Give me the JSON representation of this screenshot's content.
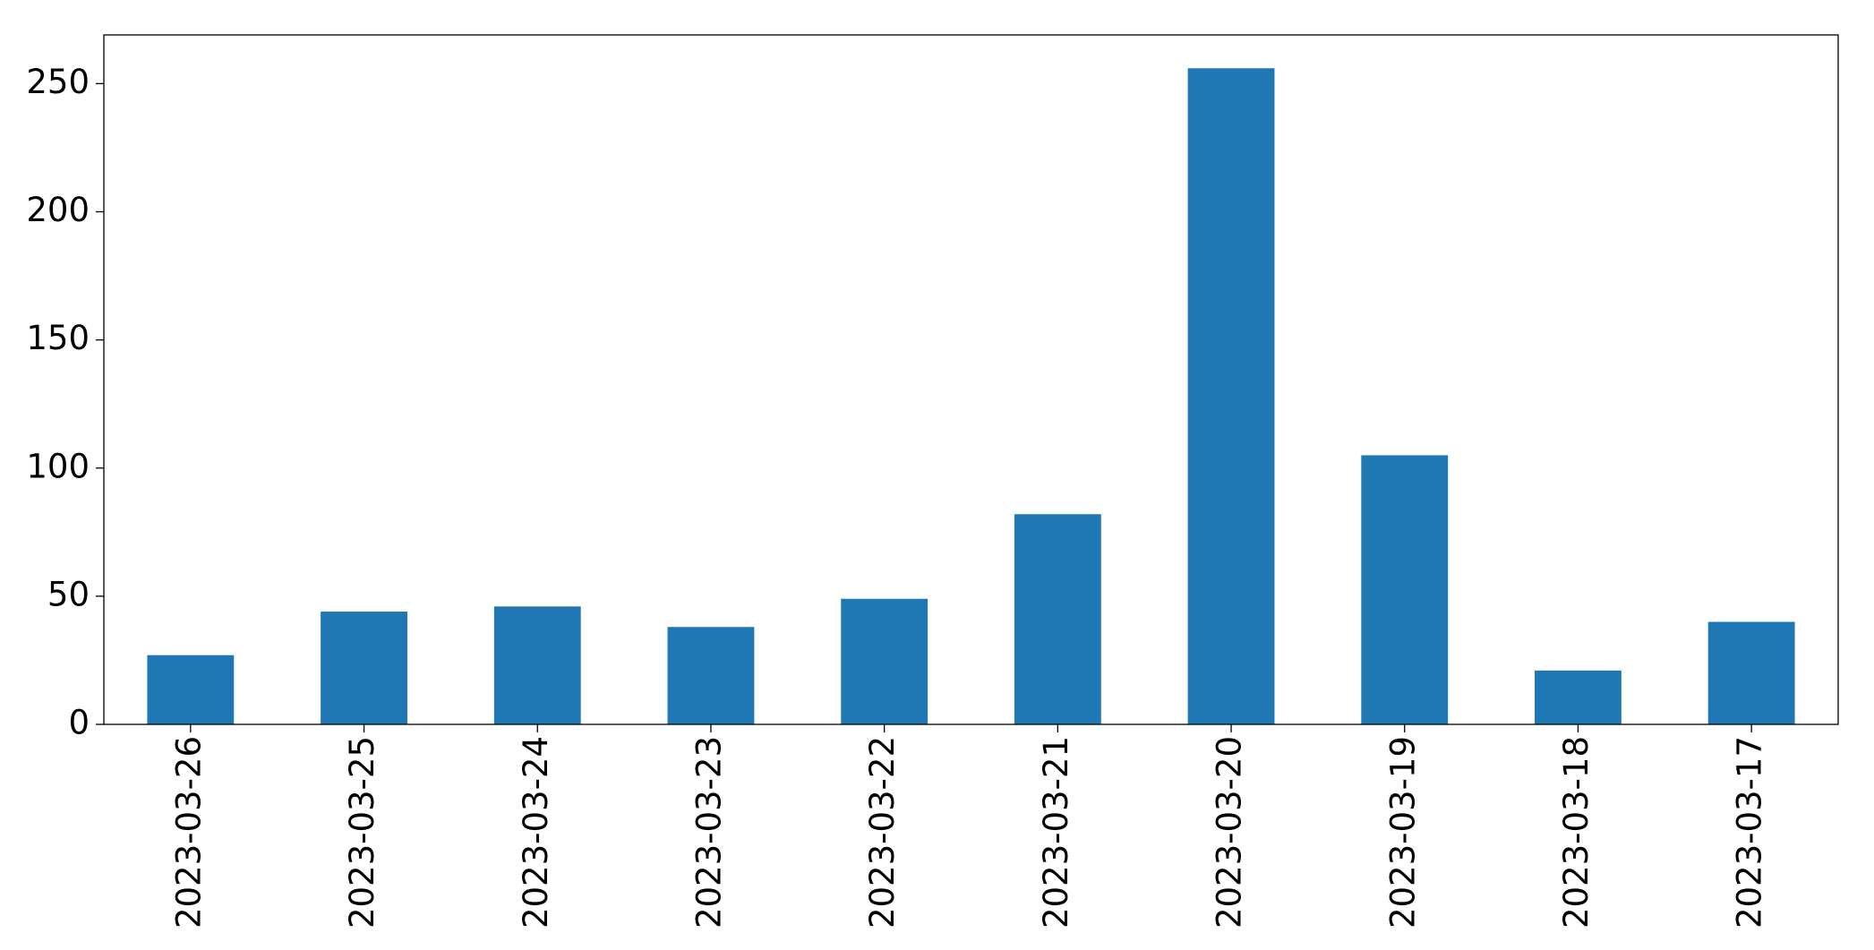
{
  "chart_data": {
    "type": "bar",
    "categories": [
      "2023-03-26",
      "2023-03-25",
      "2023-03-24",
      "2023-03-23",
      "2023-03-22",
      "2023-03-21",
      "2023-03-20",
      "2023-03-19",
      "2023-03-18",
      "2023-03-17"
    ],
    "values": [
      27,
      44,
      46,
      38,
      49,
      82,
      256,
      105,
      21,
      40
    ],
    "color": "#1f77b4",
    "ylim": [
      0,
      269
    ],
    "yticks": [
      0,
      50,
      100,
      150,
      200,
      250
    ]
  }
}
